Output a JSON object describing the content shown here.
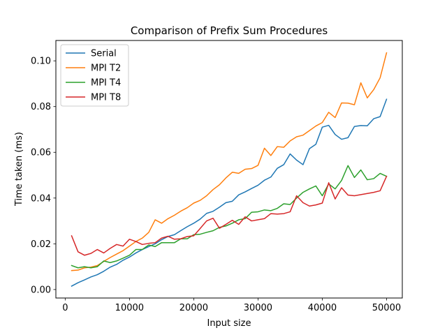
{
  "chart_data": {
    "type": "line",
    "title": "Comparison of Prefix Sum Procedures",
    "xlabel": "Input size",
    "ylabel": "Time taken (ms)",
    "xlim": [
      -1450,
      52450
    ],
    "ylim": [
      -0.0037,
      0.1089
    ],
    "xticks": [
      0,
      10000,
      20000,
      30000,
      40000,
      50000
    ],
    "xtick_labels": [
      "0",
      "10000",
      "20000",
      "30000",
      "40000",
      "50000"
    ],
    "yticks": [
      0.0,
      0.02,
      0.04,
      0.06,
      0.08,
      0.1
    ],
    "ytick_labels": [
      "0.00",
      "0.02",
      "0.04",
      "0.06",
      "0.08",
      "0.10"
    ],
    "legend_position": "top-left",
    "grid": false,
    "x": [
      1000,
      2000,
      3000,
      4000,
      5000,
      6000,
      7000,
      8000,
      9000,
      10000,
      11000,
      12000,
      13000,
      14000,
      15000,
      16000,
      17000,
      18000,
      19000,
      20000,
      21000,
      22000,
      23000,
      24000,
      25000,
      26000,
      27000,
      28000,
      29000,
      30000,
      31000,
      32000,
      33000,
      34000,
      35000,
      36000,
      37000,
      38000,
      39000,
      40000,
      41000,
      42000,
      43000,
      44000,
      45000,
      46000,
      47000,
      48000,
      49000,
      50000
    ],
    "series": [
      {
        "name": "Serial",
        "color": "#1f77b4",
        "values": [
          0.0015,
          0.003,
          0.0042,
          0.0055,
          0.0065,
          0.008,
          0.0098,
          0.011,
          0.0128,
          0.0142,
          0.016,
          0.0175,
          0.0188,
          0.02,
          0.0218,
          0.0232,
          0.024,
          0.0258,
          0.0275,
          0.029,
          0.0308,
          0.0333,
          0.0342,
          0.036,
          0.038,
          0.0386,
          0.0414,
          0.0427,
          0.0442,
          0.0456,
          0.0478,
          0.0492,
          0.053,
          0.0546,
          0.0593,
          0.0566,
          0.0546,
          0.0616,
          0.0635,
          0.071,
          0.0718,
          0.0678,
          0.0657,
          0.0664,
          0.0713,
          0.0717,
          0.0716,
          0.0747,
          0.0756,
          0.0832
        ]
      },
      {
        "name": "MPI T2",
        "color": "#ff7f0e",
        "values": [
          0.0083,
          0.0085,
          0.0095,
          0.0098,
          0.0105,
          0.0123,
          0.014,
          0.0155,
          0.017,
          0.019,
          0.021,
          0.0225,
          0.025,
          0.0305,
          0.029,
          0.031,
          0.0325,
          0.0343,
          0.0358,
          0.0378,
          0.039,
          0.041,
          0.0437,
          0.0458,
          0.0488,
          0.0513,
          0.0508,
          0.0526,
          0.0529,
          0.0543,
          0.0618,
          0.0586,
          0.0625,
          0.0622,
          0.065,
          0.0668,
          0.0675,
          0.0695,
          0.0715,
          0.073,
          0.0775,
          0.0752,
          0.0816,
          0.0815,
          0.0808,
          0.0904,
          0.0838,
          0.0874,
          0.0926,
          0.1035
        ]
      },
      {
        "name": "MPI T4",
        "color": "#2ca02c",
        "values": [
          0.0105,
          0.0095,
          0.01,
          0.0095,
          0.01,
          0.0125,
          0.0118,
          0.0125,
          0.0137,
          0.015,
          0.0175,
          0.0175,
          0.0195,
          0.0188,
          0.0205,
          0.0205,
          0.0205,
          0.0222,
          0.0222,
          0.024,
          0.0242,
          0.025,
          0.0257,
          0.0272,
          0.0278,
          0.029,
          0.0305,
          0.031,
          0.0338,
          0.034,
          0.0348,
          0.0345,
          0.0355,
          0.0375,
          0.0372,
          0.04,
          0.0425,
          0.044,
          0.0453,
          0.041,
          0.0462,
          0.044,
          0.0477,
          0.0542,
          0.049,
          0.0523,
          0.048,
          0.0485,
          0.0508,
          0.0495
        ]
      },
      {
        "name": "MPI T8",
        "color": "#d62728",
        "values": [
          0.0235,
          0.0165,
          0.015,
          0.0158,
          0.0175,
          0.016,
          0.018,
          0.0197,
          0.019,
          0.022,
          0.021,
          0.0197,
          0.0202,
          0.0205,
          0.0225,
          0.0233,
          0.022,
          0.0222,
          0.0232,
          0.0235,
          0.0267,
          0.03,
          0.0312,
          0.0268,
          0.0285,
          0.0303,
          0.0285,
          0.0318,
          0.03,
          0.0305,
          0.031,
          0.0332,
          0.033,
          0.0332,
          0.034,
          0.041,
          0.038,
          0.0365,
          0.037,
          0.0378,
          0.0467,
          0.0396,
          0.0445,
          0.0413,
          0.041,
          0.0415,
          0.042,
          0.0425,
          0.0432,
          0.0495
        ]
      }
    ]
  }
}
